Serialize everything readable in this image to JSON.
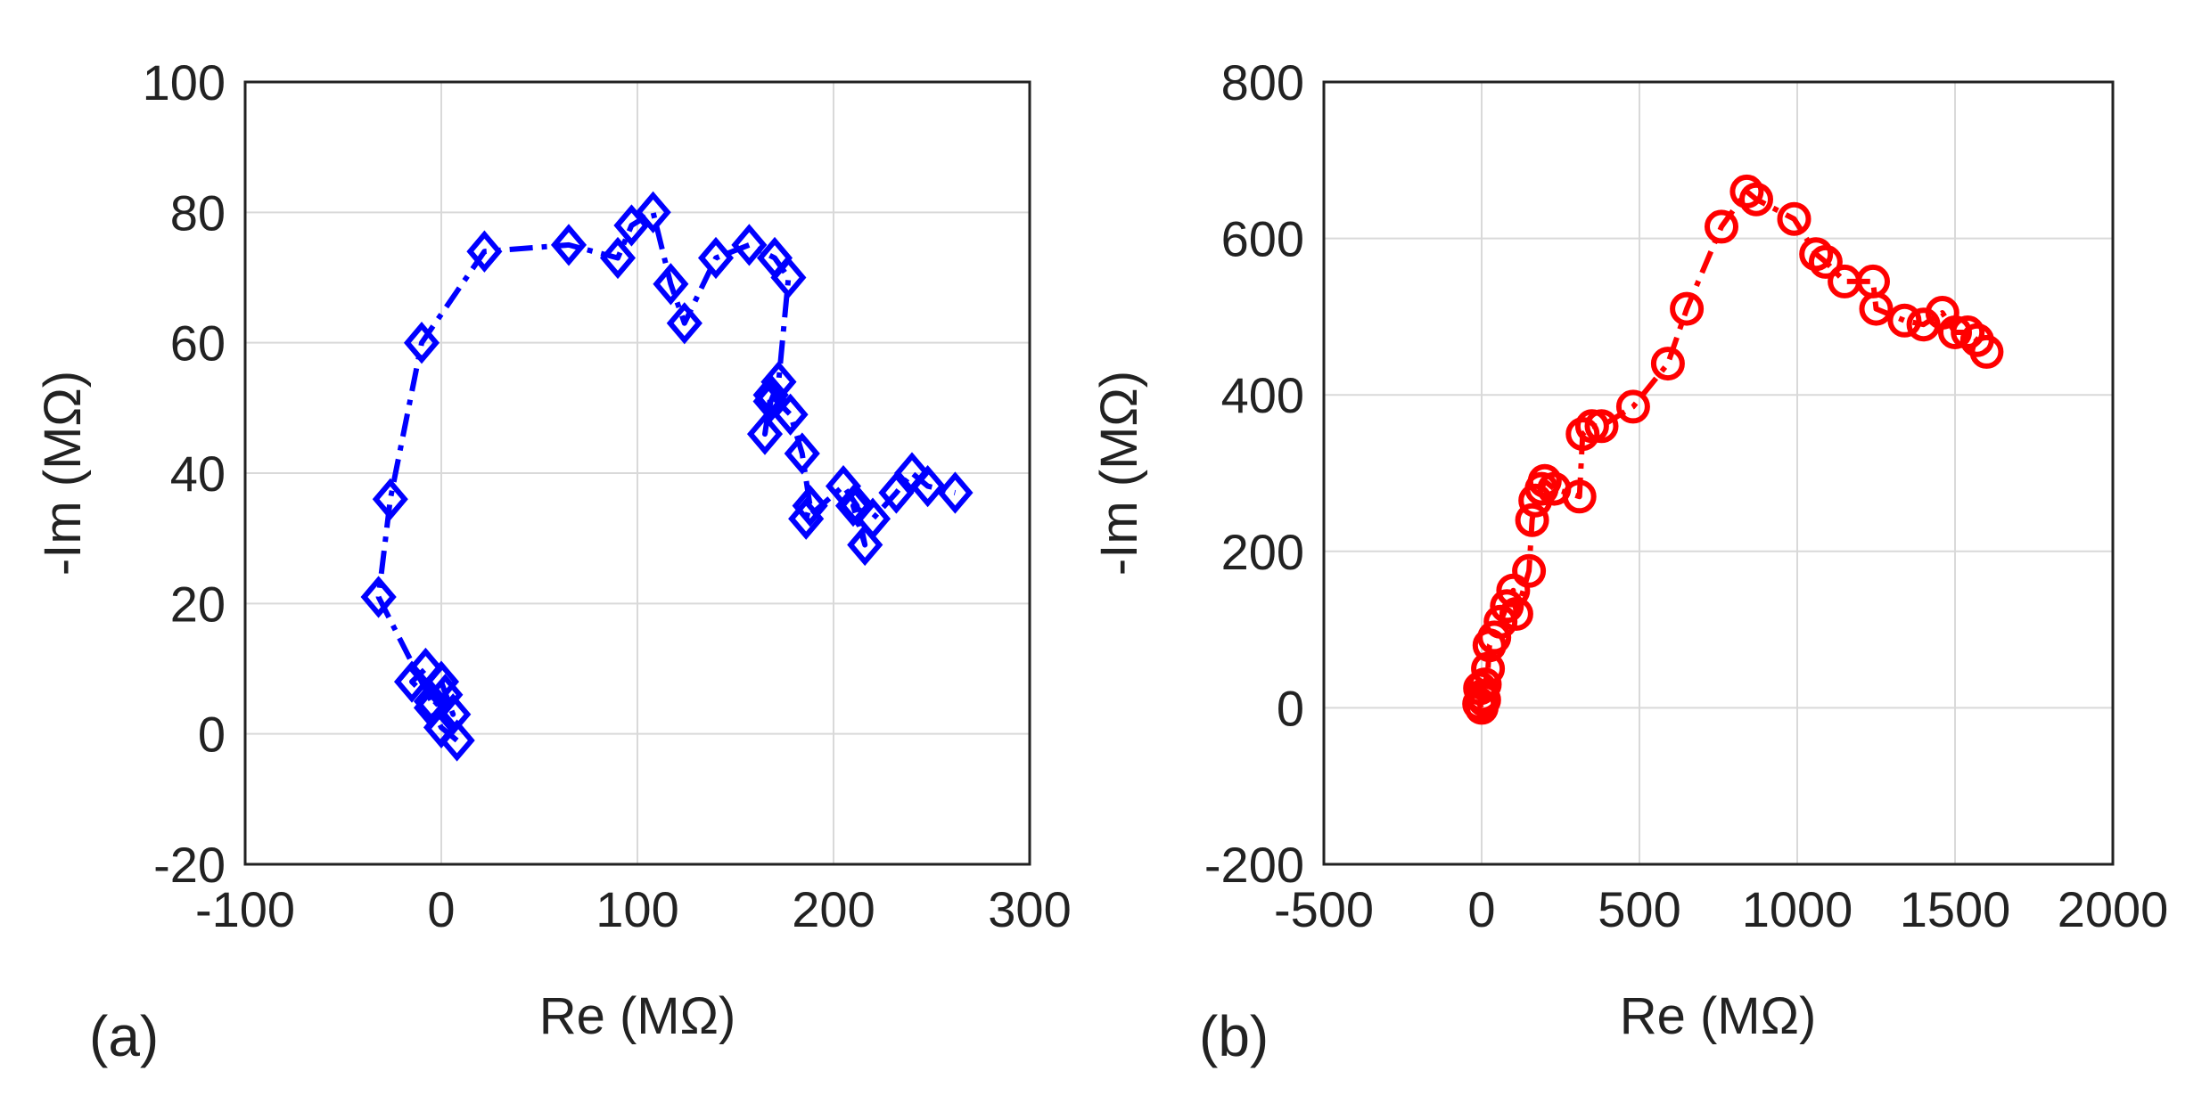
{
  "chart_data": [
    {
      "type": "scatter",
      "panel_label": "(a)",
      "xlabel": "Re (MΩ)",
      "ylabel": "-Im (MΩ)",
      "xlim": [
        -100,
        300
      ],
      "ylim": [
        -20,
        100
      ],
      "xticks": [
        "-100",
        "0",
        "100",
        "200",
        "300"
      ],
      "yticks": [
        "-20",
        "0",
        "20",
        "40",
        "60",
        "80",
        "100"
      ],
      "grid": true,
      "series": [
        {
          "name": "a",
          "marker": "diamond",
          "line": "dash-dot",
          "color": "#0000ff",
          "x": [
            8,
            0,
            -5,
            2,
            6,
            0,
            -8,
            -15,
            -5,
            -32,
            -26,
            -10,
            22,
            65,
            90,
            97,
            108,
            117,
            124,
            140,
            157,
            170,
            177,
            172,
            168,
            165,
            168,
            178,
            184,
            188,
            186,
            205,
            212,
            216,
            210,
            220,
            232,
            240,
            248,
            262
          ],
          "y": [
            -1,
            1,
            4,
            6,
            3,
            8,
            10,
            8,
            5,
            21,
            36,
            60,
            74,
            75,
            73,
            78,
            80,
            69,
            63,
            73,
            75,
            73,
            70,
            54,
            51,
            46,
            52,
            49,
            43,
            35,
            33,
            38,
            35,
            29,
            35,
            33,
            37,
            40,
            38,
            37
          ]
        }
      ]
    },
    {
      "type": "scatter",
      "panel_label": "(b)",
      "xlabel": "Re (MΩ)",
      "ylabel": "-Im (MΩ)",
      "xlim": [
        -500,
        2000
      ],
      "ylim": [
        -200,
        800
      ],
      "xticks": [
        "-500",
        "0",
        "500",
        "1000",
        "1500",
        "2000"
      ],
      "yticks": [
        "-200",
        "0",
        "200",
        "400",
        "600",
        "800"
      ],
      "grid": true,
      "series": [
        {
          "name": "b",
          "marker": "circle",
          "line": "dash-dot",
          "color": "#ff0000",
          "x": [
            0,
            -8,
            8,
            2,
            -5,
            10,
            20,
            25,
            40,
            60,
            80,
            100,
            110,
            150,
            160,
            170,
            190,
            200,
            230,
            310,
            320,
            350,
            380,
            480,
            590,
            650,
            760,
            840,
            870,
            990,
            1060,
            1090,
            1150,
            1240,
            1250,
            1340,
            1400,
            1460,
            1500,
            1540,
            1570,
            1600
          ],
          "y": [
            0,
            5,
            10,
            15,
            25,
            30,
            50,
            80,
            90,
            110,
            130,
            150,
            120,
            175,
            240,
            265,
            280,
            290,
            280,
            270,
            350,
            360,
            360,
            385,
            440,
            510,
            615,
            660,
            650,
            625,
            580,
            570,
            545,
            545,
            510,
            495,
            490,
            505,
            480,
            480,
            470,
            455
          ]
        }
      ]
    }
  ]
}
